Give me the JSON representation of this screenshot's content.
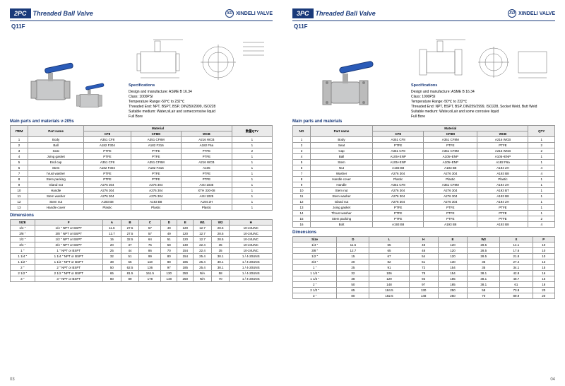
{
  "brand": "XINDELI VALVE",
  "left": {
    "title_lead": "2PC",
    "title_rest": "Threaded Ball Valve",
    "model": "Q11F",
    "specs_title": "Specifications",
    "specs_lines": [
      "Design and manufacture: ASME B 16.34",
      "Class: 1000PSI",
      "Temperature Range:-50℃ to 232℃",
      "Threaded End: NPT, BSPT, BSP, DIN259/2999, ISO228",
      "Suitable medium: Water,oil,air and somecorrosive liquid",
      "Full Bore"
    ],
    "parts_title": "Main parts and materials v-205s",
    "parts_head": [
      "ITEM",
      "Part name",
      "CF8",
      "CF8M",
      "WCB",
      "数量QTY"
    ],
    "parts_rows": [
      [
        "1",
        "Body",
        "A351 CF8",
        "A351 CF8M",
        "A216 WCB",
        "1"
      ],
      [
        "2",
        "Ball",
        "A182 F304",
        "A182 F316",
        "A182 F6a",
        "1"
      ],
      [
        "3",
        "Seat",
        "PTFE",
        "PTFE",
        "PTFE",
        "2"
      ],
      [
        "4",
        "Joing gasket",
        "PTFE",
        "PTFE",
        "PTFE",
        "1"
      ],
      [
        "5",
        "End cap",
        "A351 CF8",
        "A351 CF8M",
        "A216 WCB",
        "1"
      ],
      [
        "6",
        "Stem",
        "A182 F304",
        "A182 F316",
        "A105",
        "1"
      ],
      [
        "7",
        "hrust washer",
        "PTFE",
        "PTFE",
        "PTFE",
        "1"
      ],
      [
        "8",
        "Stem packing",
        "PTFE",
        "PTFE",
        "PTFE",
        "1"
      ],
      [
        "9",
        "Gland nut",
        "A276 304",
        "A276 304",
        "AISI 1035",
        "1"
      ],
      [
        "10",
        "Handle",
        "A276 304",
        "A276 304",
        "XTH 330-08",
        "1"
      ],
      [
        "11",
        "Stem washer",
        "A276 304",
        "A276 304",
        "AISI 1025",
        "1"
      ],
      [
        "12",
        "Stem nut",
        "A193 B8",
        "A193 B8",
        "A194 2H",
        "1"
      ],
      [
        "13",
        "Handle cover",
        "Plastic",
        "Plastic",
        "Plastic",
        "1"
      ]
    ],
    "dim_title": "Dimensions",
    "dim_head": [
      "SIZE",
      "F",
      "A",
      "B",
      "C",
      "D",
      "E",
      "W1",
      "W2",
      "H"
    ],
    "dim_rows": [
      [
        "1/4 \"",
        "1/4 \" NPT or BSPT",
        "11.6",
        "27.5",
        "57",
        "49",
        "120",
        "12.7",
        "28.5",
        "10-24UNC"
      ],
      [
        "3/8 \"",
        "3/8 \" NPT or BSPT",
        "12.7",
        "27.5",
        "57",
        "49",
        "120",
        "12.7",
        "28.5",
        "10-24UNC"
      ],
      [
        "1/2 \"",
        "1/2 \" NPT or BSPT",
        "15",
        "32.5",
        "64",
        "51",
        "120",
        "12.7",
        "28.5",
        "10-24UNC"
      ],
      [
        "3/4 \"",
        "3/4 \" NPT or BSPT",
        "20",
        "37",
        "75",
        "58",
        "130",
        "22.4",
        "35",
        "10-24UNC"
      ],
      [
        "1 \"",
        "1 \" NPT or BSPT",
        "25",
        "44",
        "86",
        "70",
        "154",
        "22.4",
        "35",
        "10-24UNC"
      ],
      [
        "1 1/4 \"",
        "1 1/4 \" NPT or BSPT",
        "32",
        "51",
        "99",
        "80",
        "154",
        "25.4",
        "38.1",
        "1 / 4-20UNS"
      ],
      [
        "1 1/2 \"",
        "1 1/2 \" NPT or BSPT",
        "38",
        "55",
        "118",
        "88",
        "185",
        "25.4",
        "38.1",
        "1 / 4-20UNS"
      ],
      [
        "2 \"",
        "2 \" NPT or BSPT",
        "50",
        "62.5",
        "136",
        "97",
        "185",
        "25.4",
        "38.1",
        "1 / 4-20UNS"
      ],
      [
        "2 1/2 \"",
        "2 1/2 \" NPT or BSPT",
        "65",
        "81.5",
        "161.5",
        "130",
        "250",
        "N/A",
        "58",
        "1 / 4-20UNS"
      ],
      [
        "3 \"",
        "3 \" NPT or BSPT",
        "80",
        "89",
        "178",
        "148",
        "250",
        "N/A",
        "70",
        "1 / 4-20UNS"
      ]
    ],
    "pagenum": "03"
  },
  "right": {
    "title_lead": "3PC",
    "title_rest": "Threaded Ball Valve",
    "model": "Q11F",
    "specs_title": "Specifications",
    "specs_lines": [
      "Design and manufacture: ASME B 16.34",
      "Class: 1000PSI",
      "Temperature Range:-50℃ to 232℃",
      "Threaded End: NPT, BSPT, BSP, DIN259/2999, ISO228, Socket Weld, Butt Weld",
      "Suitable medium: Water,oil,air and some corrosive liquid",
      "Full Bore"
    ],
    "parts_title": "Main parts and materials",
    "parts_head": [
      "NO",
      "Part name",
      "CF8",
      "CF8M",
      "WCB",
      "QTY"
    ],
    "parts_rows": [
      [
        "1",
        "Body",
        "A351 CF8",
        "A351 CF8M",
        "A216 WCB",
        "1"
      ],
      [
        "2",
        "Seat",
        "PTFE",
        "PTFE",
        "PTFE",
        "2"
      ],
      [
        "3",
        "Cap",
        "A351 CF8",
        "A351 CF8M",
        "A216 WCB",
        "2"
      ],
      [
        "4",
        "Ball",
        "A105+ENP",
        "A105+ENP",
        "A105+ENP",
        "1"
      ],
      [
        "5",
        "Stem",
        "A105+ENP",
        "A105+ENP",
        "A182 F6a",
        "1"
      ],
      [
        "6",
        "Nut",
        "A193 B8",
        "A193 B8",
        "A194 2H",
        "4"
      ],
      [
        "7",
        "Washer",
        "A276 304",
        "A276 304",
        "A193 B8",
        "4"
      ],
      [
        "8",
        "Handle cover",
        "Plastic",
        "Plastic",
        "Plastic",
        "1"
      ],
      [
        "9",
        "Handle",
        "A351 CF8",
        "A351 CF8M",
        "A194 2H",
        "1"
      ],
      [
        "10",
        "Stem nut",
        "A276 304",
        "A276 304",
        "A193 BT",
        "1"
      ],
      [
        "11",
        "Stem washer",
        "A276 304",
        "A276 304",
        "A193 B8",
        "1"
      ],
      [
        "12",
        "Gland nut",
        "A276 304",
        "A276 304",
        "A194 2H",
        "1"
      ],
      [
        "13",
        "Joing gasket",
        "PTFE",
        "PTFE",
        "PTFE",
        "1"
      ],
      [
        "14",
        "Thrust washer",
        "PTFE",
        "PTFE",
        "PTFE",
        "1"
      ],
      [
        "15",
        "Stem packing",
        "PTFE",
        "PTFE",
        "PTFE",
        "2"
      ],
      [
        "16",
        "Bolt",
        "A193 B8",
        "A193 B8",
        "A193 B8",
        "4"
      ]
    ],
    "dim_title": "Dimensions",
    "dim_head": [
      "Size",
      "D",
      "L",
      "H",
      "E",
      "W2",
      "X",
      "P"
    ],
    "dim_rows": [
      [
        "1/4 \"",
        "11.6",
        "65",
        "48",
        "120",
        "28.5",
        "14.1",
        "10"
      ],
      [
        "3/8 \"",
        "12.7",
        "65",
        "48",
        "120",
        "28.5",
        "17.6",
        "10"
      ],
      [
        "1/2 \"",
        "15",
        "67",
        "54",
        "120",
        "28.5",
        "21.8",
        "10"
      ],
      [
        "3/4 \"",
        "20",
        "82",
        "61",
        "130",
        "35",
        "27.4",
        "13"
      ],
      [
        "1 \"",
        "25",
        "91",
        "72",
        "154",
        "35",
        "34.1",
        "15"
      ],
      [
        "1 1/4 \"",
        "32",
        "106",
        "78",
        "154",
        "38.1",
        "42.8",
        "16"
      ],
      [
        "1 1/2 \"",
        "38",
        "129",
        "93",
        "185",
        "38.1",
        "48.7",
        "16"
      ],
      [
        "2 \"",
        "50",
        "148",
        "97",
        "185",
        "38.1",
        "61",
        "18"
      ],
      [
        "2 1/2 \"",
        "65",
        "184.5",
        "130",
        "250",
        "58",
        "73.8",
        "20"
      ],
      [
        "3 \"",
        "80",
        "182.5",
        "148",
        "250",
        "70",
        "89.9",
        "20"
      ]
    ],
    "pagenum": "04"
  },
  "colors": {
    "brand_blue": "#1a3a7a",
    "handle_blue": "#2a5bb8",
    "metal": "#c8c9ca",
    "metal_dark": "#9a9b9c",
    "grid": "#999"
  }
}
